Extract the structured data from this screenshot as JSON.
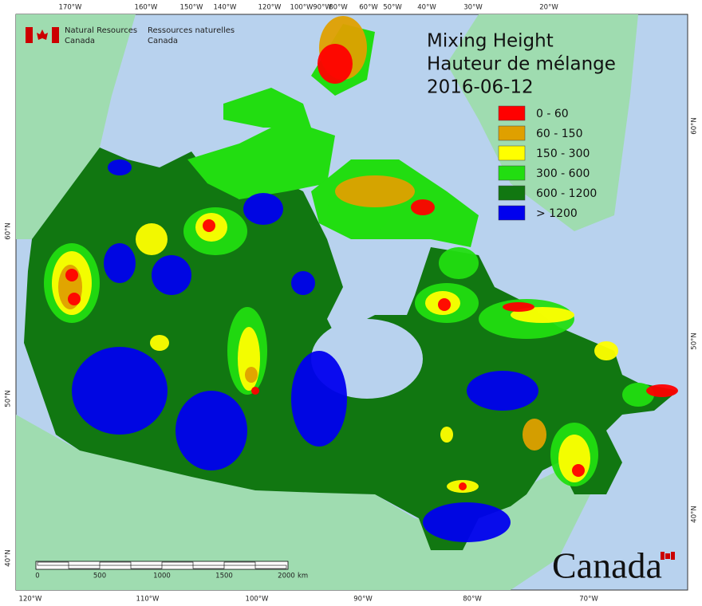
{
  "header": {
    "org_en": [
      "Natural Resources",
      "Canada"
    ],
    "org_fr": [
      "Ressources naturelles",
      "Canada"
    ]
  },
  "title": {
    "en": "Mixing Height",
    "fr": "Hauteur de mélange",
    "date": "2016-06-12"
  },
  "legend": [
    {
      "label": "0 - 60",
      "color": "#ff0000"
    },
    {
      "label": "60 - 150",
      "color": "#dfa000"
    },
    {
      "label": "150 - 300",
      "color": "#ffff00"
    },
    {
      "label": "300 - 600",
      "color": "#22dd11"
    },
    {
      "label": "600 - 1200",
      "color": "#117711"
    },
    {
      "label": "> 1200",
      "color": "#0000ee"
    }
  ],
  "graticule": {
    "top": [
      "170°W",
      "160°W",
      "150°W",
      "140°W",
      "120°W",
      "100°W",
      "90°W",
      "80°W",
      "60°W",
      "50°W",
      "40°W",
      "30°W",
      "20°W"
    ],
    "bottom": [
      "120°W",
      "110°W",
      "100°W",
      "90°W",
      "80°W",
      "70°W"
    ],
    "left": [
      "60°N",
      "50°N",
      "40°N"
    ],
    "right": [
      "60°N",
      "50°N",
      "40°N"
    ]
  },
  "scale_bar": {
    "labels": [
      "0",
      "500",
      "1000",
      "1500",
      "2000"
    ],
    "unit": "km"
  },
  "wordmark": "Canada"
}
